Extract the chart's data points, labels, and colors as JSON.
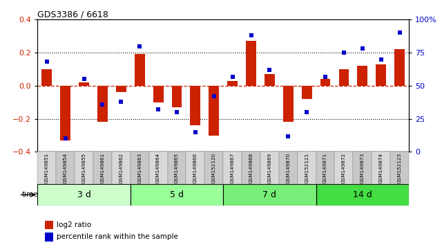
{
  "title": "GDS3386 / 6618",
  "samples": [
    "GSM149851",
    "GSM149854",
    "GSM149855",
    "GSM149861",
    "GSM149862",
    "GSM149863",
    "GSM149864",
    "GSM149865",
    "GSM149866",
    "GSM152120",
    "GSM149867",
    "GSM149868",
    "GSM149869",
    "GSM149870",
    "GSM152121",
    "GSM149871",
    "GSM149872",
    "GSM149873",
    "GSM149874",
    "GSM152123"
  ],
  "log2_ratio": [
    0.1,
    -0.33,
    0.02,
    -0.22,
    -0.04,
    0.19,
    -0.1,
    -0.13,
    -0.24,
    -0.3,
    0.03,
    0.27,
    0.07,
    -0.22,
    -0.08,
    0.04,
    0.1,
    0.12,
    0.13,
    0.22
  ],
  "percentile_rank": [
    68,
    10,
    55,
    36,
    38,
    80,
    32,
    30,
    15,
    42,
    57,
    88,
    62,
    12,
    30,
    57,
    75,
    78,
    70,
    90
  ],
  "groups": [
    {
      "label": "3 d",
      "start": 0,
      "end": 5,
      "color": "#ccffcc"
    },
    {
      "label": "5 d",
      "start": 5,
      "end": 10,
      "color": "#99ff99"
    },
    {
      "label": "7 d",
      "start": 10,
      "end": 15,
      "color": "#77ee77"
    },
    {
      "label": "14 d",
      "start": 15,
      "end": 20,
      "color": "#44dd44"
    }
  ],
  "bar_color": "#cc2200",
  "dot_color": "#0000cc",
  "zero_line_color": "#cc2200",
  "bg_color": "#ffffff",
  "ylim_left": [
    -0.4,
    0.4
  ],
  "ylim_right": [
    0,
    100
  ],
  "yticks_left": [
    -0.4,
    -0.2,
    0.0,
    0.2,
    0.4
  ],
  "yticks_right": [
    0,
    25,
    50,
    75,
    100
  ],
  "ytick_labels_right": [
    "0",
    "25",
    "50",
    "75",
    "100%"
  ]
}
